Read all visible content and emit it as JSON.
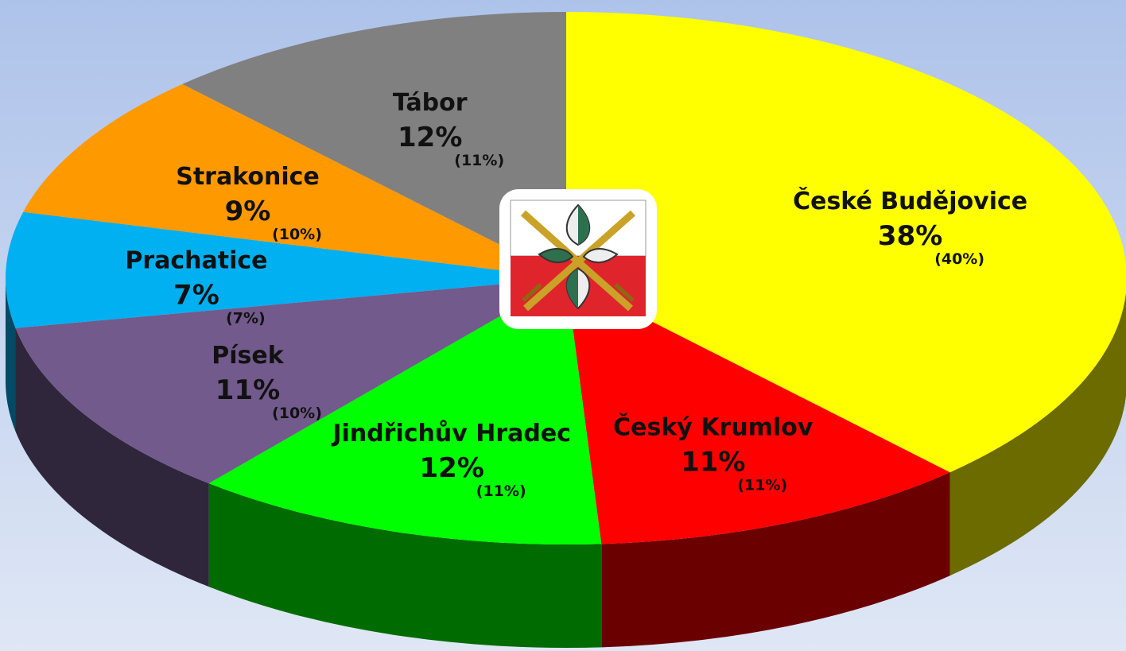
{
  "chart_data": {
    "type": "pie3d",
    "categories": [
      "České Budějovice",
      "Český Krumlov",
      "Jindřichův Hradec",
      "Písek",
      "Prachatice",
      "Strakonice",
      "Tábor"
    ],
    "values": [
      38,
      11,
      12,
      11,
      7,
      9,
      12
    ],
    "value_labels": [
      "38%",
      "11%",
      "12%",
      "11%",
      "7%",
      "9%",
      "12%"
    ],
    "previous_values": [
      40,
      11,
      11,
      10,
      7,
      10,
      11
    ],
    "previous_value_labels": [
      "(40%)",
      "(11%)",
      "(11%)",
      "(10%)",
      "(7%)",
      "(10%)",
      "(11%)"
    ],
    "colors": [
      "#ffff00",
      "#ff0000",
      "#00ff00",
      "#725a8c",
      "#00b0f0",
      "#ff9900",
      "#808080"
    ]
  }
}
